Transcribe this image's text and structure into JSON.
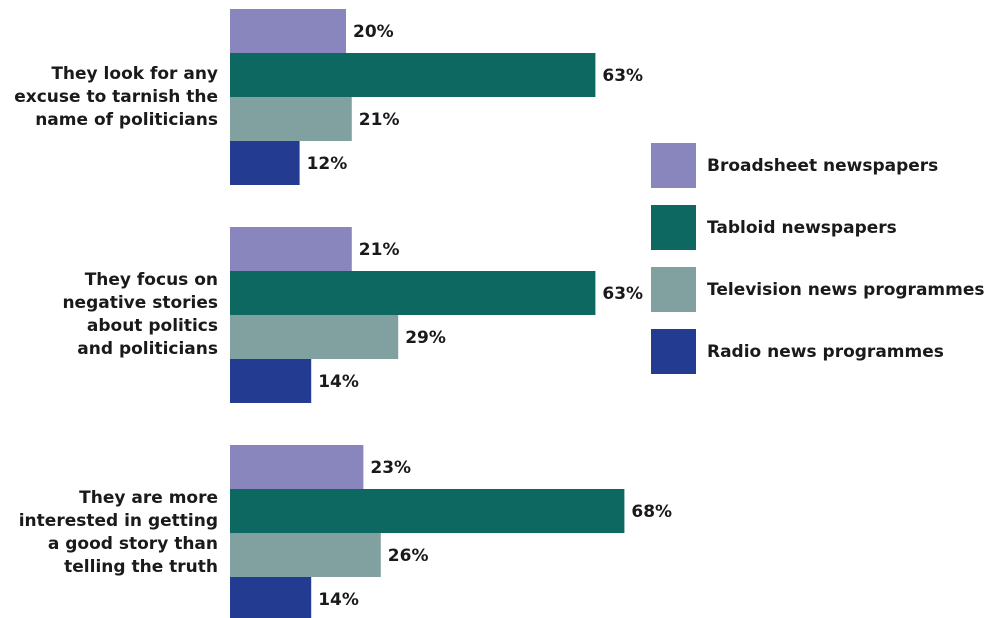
{
  "chart_data": {
    "type": "bar",
    "orientation": "horizontal",
    "categories": [
      "They look for any excuse to tarnish the name of politicians",
      "They focus on negative stories about politics and politicians",
      "They are more interested in getting a good story than telling the truth"
    ],
    "category_lines": [
      [
        "They look for any",
        "excuse to tarnish the",
        "name of politicians"
      ],
      [
        "They focus on",
        "negative stories",
        "about politics",
        "and politicians"
      ],
      [
        "They are more",
        "interested in getting",
        "a good story than",
        "telling the truth"
      ]
    ],
    "series": [
      {
        "name": "Broadsheet newspapers",
        "color": "#8886bd",
        "values": [
          20,
          21,
          23
        ]
      },
      {
        "name": "Tabloid newspapers",
        "color": "#0d6862",
        "values": [
          63,
          63,
          68
        ]
      },
      {
        "name": "Television news programmes",
        "color": "#80a19f",
        "values": [
          21,
          29,
          26
        ]
      },
      {
        "name": "Radio news programmes",
        "color": "#233b91",
        "values": [
          12,
          14,
          14
        ]
      }
    ],
    "value_suffix": "%",
    "xlim": [
      0,
      100
    ],
    "grid": false,
    "legend_position": "right"
  }
}
